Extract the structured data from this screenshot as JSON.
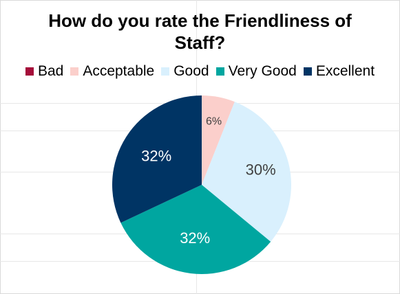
{
  "chart_data": {
    "type": "pie",
    "title_lines": [
      "How do you rate the Friendliness of",
      "Staff?"
    ],
    "categories": [
      "Bad",
      "Acceptable",
      "Good",
      "Very Good",
      "Excellent"
    ],
    "values": [
      0,
      6,
      30,
      32,
      32
    ],
    "value_labels": [
      "",
      "6%",
      "30%",
      "32%",
      "32%"
    ],
    "colors": [
      "#a50d3a",
      "#fbcfcb",
      "#d9f0fd",
      "#00a6a0",
      "#003464"
    ],
    "label_colors": [
      "#000000",
      "#404040",
      "#404040",
      "#ffffff",
      "#ffffff"
    ],
    "legend_position": "top",
    "start_angle": "12 o'clock, clockwise"
  }
}
